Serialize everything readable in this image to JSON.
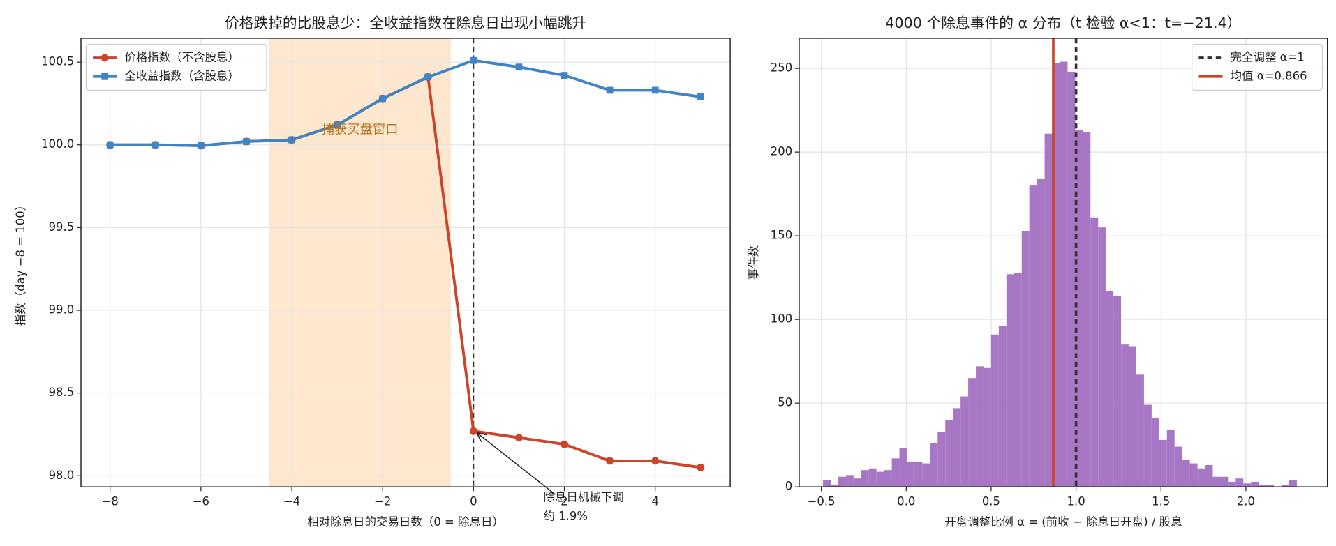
{
  "chart_data": [
    {
      "type": "line",
      "title": "价格跌掉的比股息少：全收益指数在除息日出现小幅跳升",
      "xlabel": "相对除息日的交易日数（0 = 除息日）",
      "ylabel": "指数（day −8 = 100）",
      "x": [
        -8,
        -7,
        -6,
        -5,
        -4,
        -3,
        -2,
        -1,
        0,
        1,
        2,
        3,
        4,
        5
      ],
      "series": [
        {
          "name": "价格指数（不含股息）",
          "color": "#cc4429",
          "marker": "circle",
          "values": [
            100.0,
            100.0,
            99.995,
            100.02,
            100.03,
            100.12,
            100.28,
            100.41,
            98.27,
            98.23,
            98.19,
            98.09,
            98.09,
            98.05
          ]
        },
        {
          "name": "全收益指数（含股息）",
          "color": "#3f84c4",
          "marker": "square",
          "values": [
            100.0,
            100.0,
            99.995,
            100.02,
            100.03,
            100.12,
            100.28,
            100.41,
            100.51,
            100.47,
            100.42,
            100.33,
            100.33,
            100.29
          ]
        }
      ],
      "xlim": [
        -8.64,
        5.65
      ],
      "ylim": [
        97.933,
        100.644
      ],
      "xticks": [
        {
          "value": -8,
          "label": "−8"
        },
        {
          "value": -6,
          "label": "−6"
        },
        {
          "value": -4,
          "label": "−4"
        },
        {
          "value": -2,
          "label": "−2"
        },
        0,
        2,
        4
      ],
      "yticks": [
        {
          "value": 98,
          "label": "98.0"
        },
        98.5,
        {
          "value": 99,
          "label": "99.0"
        },
        99.5,
        {
          "value": 100,
          "label": "100.0"
        },
        100.5
      ],
      "grid": true,
      "legend": "upper left",
      "spans": [
        {
          "from": -4.5,
          "to": -0.5,
          "color": "#fde8cf"
        }
      ],
      "vlines": [
        {
          "x": 0,
          "color": "#333333",
          "style": "dashed"
        }
      ],
      "annotations": [
        {
          "text": "捕获买盘窗口",
          "x": -2.5,
          "y": 100.09,
          "color": "#b8731f"
        },
        {
          "lines": [
            "除息日机械下调",
            "约 1.9%"
          ],
          "x": 0,
          "y": 98.27,
          "color": "#222222"
        }
      ]
    },
    {
      "type": "histogram",
      "title": "4000 个除息事件的 α 分布（t 检验 α<1：t=−21.4）",
      "xlabel": "开盘调整比例 α = (前收 − 除息日开盘) / 股息",
      "ylabel": "事件数",
      "color": "#a776c4",
      "bins": [
        -0.49,
        -0.445,
        -0.4,
        -0.355,
        -0.31,
        -0.265,
        -0.22,
        -0.175,
        -0.13,
        -0.085,
        -0.04,
        0.005,
        0.05,
        0.095,
        0.14,
        0.185,
        0.23,
        0.275,
        0.32,
        0.365,
        0.41,
        0.455,
        0.5,
        0.545,
        0.59,
        0.635,
        0.68,
        0.725,
        0.77,
        0.815,
        0.86,
        0.905,
        0.95,
        0.995,
        1.04,
        1.085,
        1.13,
        1.175,
        1.22,
        1.265,
        1.31,
        1.355,
        1.4,
        1.445,
        1.49,
        1.535,
        1.58,
        1.625,
        1.67,
        1.715,
        1.76,
        1.805,
        1.85,
        1.895,
        1.94,
        1.985,
        2.03,
        2.075,
        2.12,
        2.165,
        2.21,
        2.255,
        2.3
      ],
      "values": [
        4,
        1,
        6,
        7,
        5,
        10,
        11,
        9,
        10,
        17,
        23,
        15,
        15,
        14,
        26,
        33,
        40,
        47,
        54,
        65,
        72,
        71,
        91,
        96,
        127,
        128,
        153,
        180,
        184,
        211,
        253,
        254,
        248,
        213,
        212,
        161,
        155,
        117,
        114,
        85,
        84,
        67,
        49,
        41,
        28,
        34,
        24,
        16,
        14,
        11,
        13,
        6,
        6,
        3,
        5,
        2,
        3,
        1,
        1,
        0,
        1,
        4
      ],
      "xlim": [
        -0.63,
        2.48
      ],
      "ylim": [
        0,
        268
      ],
      "xticks": [
        {
          "value": -0.5,
          "label": "−0.5"
        },
        {
          "value": 0,
          "label": "0.0"
        },
        0.5,
        {
          "value": 1,
          "label": "1.0"
        },
        1.5,
        {
          "value": 2,
          "label": "2.0"
        }
      ],
      "yticks": [
        0,
        50,
        100,
        150,
        200,
        250
      ],
      "grid": true,
      "legend": "upper right",
      "vlines": [
        {
          "x": 1,
          "color": "#333333",
          "style": "dashed",
          "label": "完全调整 α=1"
        },
        {
          "x": 0.866,
          "color": "#cc4429",
          "style": "solid",
          "label": "均值 α=0.866"
        }
      ]
    }
  ]
}
